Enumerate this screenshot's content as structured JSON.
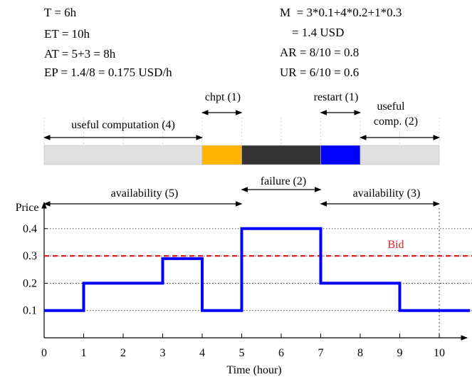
{
  "metrics_left": [
    "T = 6h",
    "ET = 10h",
    "AT = 5+3 = 8h",
    "EP = 1.4/8 = 0.175 USD/h"
  ],
  "metrics_right": [
    "M  = 3*0.1+4*0.2+1*0.3",
    "    = 1.4 USD",
    "AR = 8/10 = 0.8",
    "UR = 6/10 = 0.6"
  ],
  "timeline": {
    "segments": [
      {
        "label": "useful computation (4)",
        "start": 0,
        "end": 4,
        "color": "#e0e0e0"
      },
      {
        "label": "chpt (1)",
        "start": 4,
        "end": 5,
        "color": "#ffb400"
      },
      {
        "label": "failure (2)",
        "start": 5,
        "end": 7,
        "color": "#333333"
      },
      {
        "label": "restart (1)",
        "start": 7,
        "end": 8,
        "color": "#0000ff"
      },
      {
        "label": "useful comp. (2)",
        "start": 8,
        "end": 10,
        "color": "#e0e0e0"
      }
    ],
    "useful_comp_line1": "useful",
    "useful_comp_line2": "comp. (2)"
  },
  "availability": [
    {
      "label": "availability (5)",
      "start": 0,
      "end": 5
    },
    {
      "label": "failure (2)",
      "start": 5,
      "end": 7
    },
    {
      "label": "availability (3)",
      "start": 7,
      "end": 10
    }
  ],
  "chart_data": {
    "type": "line",
    "ylabel": "Price",
    "xlabel": "Time (hour)",
    "x_ticks": [
      "0",
      "1",
      "2",
      "3",
      "4",
      "5",
      "6",
      "7",
      "8",
      "9",
      "10"
    ],
    "y_ticks": [
      "0.1",
      "0.2",
      "0.3",
      "0.4"
    ],
    "xlim": [
      0,
      11
    ],
    "ylim": [
      0,
      0.45
    ],
    "series": [
      {
        "x": [
          0,
          1,
          1,
          3,
          3,
          4,
          4,
          5,
          5,
          7,
          7,
          9,
          9,
          11
        ],
        "values": [
          0.1,
          0.1,
          0.2,
          0.2,
          0.29,
          0.29,
          0.1,
          0.1,
          0.4,
          0.4,
          0.2,
          0.2,
          0.1,
          0.1
        ],
        "color": "#0000ff"
      }
    ],
    "bid": {
      "name": "Bid",
      "value": 0.3,
      "color": "#e02020"
    }
  }
}
